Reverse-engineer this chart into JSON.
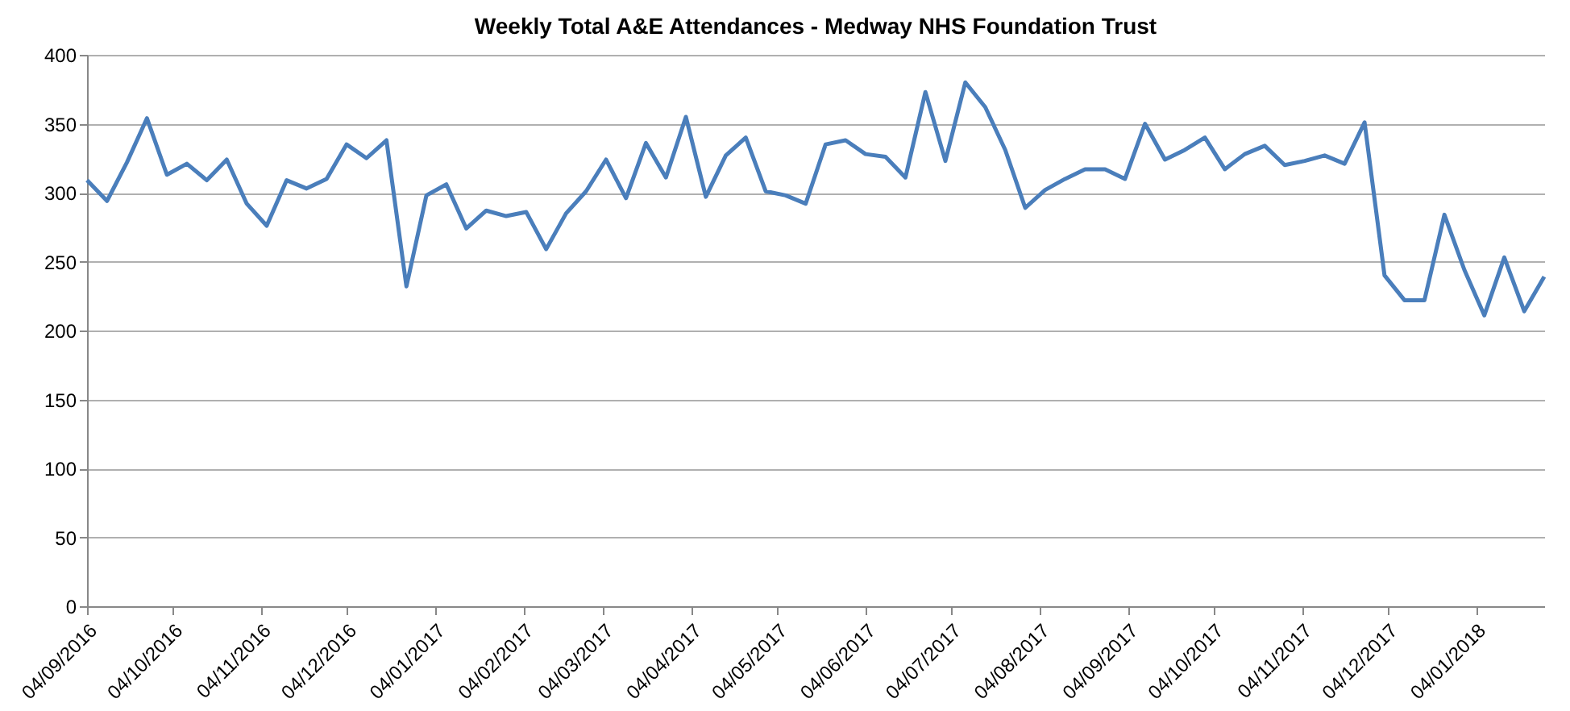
{
  "chart_data": {
    "type": "line",
    "title": "Weekly Total A&E Attendances - Medway NHS Foundation Trust",
    "x": [
      "2016-09-04",
      "2016-09-11",
      "2016-09-18",
      "2016-09-25",
      "2016-10-02",
      "2016-10-09",
      "2016-10-16",
      "2016-10-23",
      "2016-10-30",
      "2016-11-06",
      "2016-11-13",
      "2016-11-20",
      "2016-11-27",
      "2016-12-04",
      "2016-12-11",
      "2016-12-18",
      "2016-12-25",
      "2017-01-01",
      "2017-01-08",
      "2017-01-15",
      "2017-01-22",
      "2017-01-29",
      "2017-02-05",
      "2017-02-12",
      "2017-02-19",
      "2017-02-26",
      "2017-03-05",
      "2017-03-12",
      "2017-03-19",
      "2017-03-26",
      "2017-04-02",
      "2017-04-09",
      "2017-04-16",
      "2017-04-23",
      "2017-04-30",
      "2017-05-07",
      "2017-05-14",
      "2017-05-21",
      "2017-05-28",
      "2017-06-04",
      "2017-06-11",
      "2017-06-18",
      "2017-06-25",
      "2017-07-02",
      "2017-07-09",
      "2017-07-16",
      "2017-07-23",
      "2017-07-30",
      "2017-08-06",
      "2017-08-13",
      "2017-08-20",
      "2017-08-27",
      "2017-09-03",
      "2017-09-10",
      "2017-09-17",
      "2017-09-24",
      "2017-10-01",
      "2017-10-08",
      "2017-10-15",
      "2017-10-22",
      "2017-10-29",
      "2017-11-05",
      "2017-11-12",
      "2017-11-19",
      "2017-11-26",
      "2017-12-03",
      "2017-12-10",
      "2017-12-17",
      "2017-12-24",
      "2017-12-31",
      "2018-01-07",
      "2018-01-14",
      "2018-01-21",
      "2018-01-28"
    ],
    "series": [
      {
        "color": "#4a7ebb",
        "values": [
          309,
          294,
          322,
          354,
          313,
          321,
          309,
          324,
          292,
          276,
          309,
          303,
          310,
          335,
          325,
          338,
          232,
          298,
          306,
          274,
          287,
          283,
          286,
          259,
          285,
          301,
          324,
          296,
          336,
          311,
          355,
          297,
          327,
          340,
          301,
          298,
          292,
          335,
          338,
          328,
          326,
          311,
          373,
          323,
          380,
          362,
          331,
          289,
          302,
          310,
          317,
          317,
          310,
          350,
          324,
          331,
          340,
          317,
          328,
          334,
          320,
          323,
          327,
          321,
          351,
          240,
          222,
          222,
          284,
          244,
          211,
          253,
          214,
          239
        ]
      }
    ],
    "xlim": [
      "2016-09-04",
      "2018-01-28"
    ],
    "xticks": [
      {
        "value": "2016-09-04",
        "label": "04/09/2016"
      },
      {
        "value": "2016-10-04",
        "label": "04/10/2016"
      },
      {
        "value": "2016-11-04",
        "label": "04/11/2016"
      },
      {
        "value": "2016-12-04",
        "label": "04/12/2016"
      },
      {
        "value": "2017-01-04",
        "label": "04/01/2017"
      },
      {
        "value": "2017-02-04",
        "label": "04/02/2017"
      },
      {
        "value": "2017-03-04",
        "label": "04/03/2017"
      },
      {
        "value": "2017-04-04",
        "label": "04/04/2017"
      },
      {
        "value": "2017-05-04",
        "label": "04/05/2017"
      },
      {
        "value": "2017-06-04",
        "label": "04/06/2017"
      },
      {
        "value": "2017-07-04",
        "label": "04/07/2017"
      },
      {
        "value": "2017-08-04",
        "label": "04/08/2017"
      },
      {
        "value": "2017-09-04",
        "label": "04/09/2017"
      },
      {
        "value": "2017-10-04",
        "label": "04/10/2017"
      },
      {
        "value": "2017-11-04",
        "label": "04/11/2017"
      },
      {
        "value": "2017-12-04",
        "label": "04/12/2017"
      },
      {
        "value": "2018-01-04",
        "label": "04/01/2018"
      }
    ],
    "ylim": [
      0,
      400
    ],
    "yticks": [
      0,
      50,
      100,
      150,
      200,
      250,
      300,
      350,
      400
    ],
    "grid": "y",
    "marker": "none",
    "line_style": "solid"
  }
}
